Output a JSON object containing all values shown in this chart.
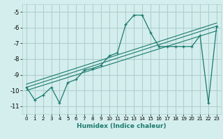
{
  "title": "",
  "xlabel": "Humidex (Indice chaleur)",
  "bg_color": "#d4eeed",
  "grid_color": "#aecfce",
  "line_color": "#1a7a6e",
  "xlim": [
    -0.5,
    23.5
  ],
  "ylim": [
    -11.5,
    -4.5
  ],
  "xticks": [
    0,
    1,
    2,
    3,
    4,
    5,
    6,
    7,
    8,
    9,
    10,
    11,
    12,
    13,
    14,
    15,
    16,
    17,
    18,
    19,
    20,
    21,
    22,
    23
  ],
  "yticks": [
    -11,
    -10,
    -9,
    -8,
    -7,
    -6,
    -5
  ],
  "main_x": [
    0,
    1,
    2,
    3,
    4,
    5,
    6,
    7,
    8,
    9,
    10,
    11,
    12,
    13,
    14,
    15,
    16,
    17,
    18,
    19,
    20,
    21,
    22,
    23
  ],
  "main_y": [
    -9.8,
    -10.6,
    -10.3,
    -9.8,
    -10.8,
    -9.5,
    -9.3,
    -8.7,
    -8.6,
    -8.4,
    -7.8,
    -7.6,
    -5.8,
    -5.2,
    -5.2,
    -6.3,
    -7.2,
    -7.2,
    -7.2,
    -7.2,
    -7.2,
    -6.5,
    -10.8,
    -5.9
  ],
  "line2_x": [
    0,
    23
  ],
  "line2_y": [
    -9.8,
    -5.9
  ],
  "line3_x": [
    0,
    23
  ],
  "line3_y": [
    -10.0,
    -6.2
  ],
  "line4_x": [
    0,
    23
  ],
  "line4_y": [
    -9.6,
    -5.7
  ]
}
